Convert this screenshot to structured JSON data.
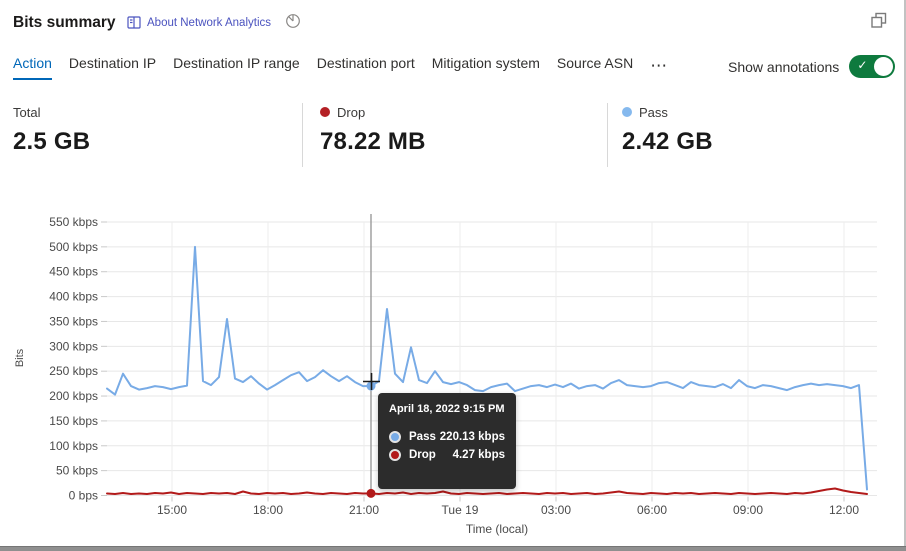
{
  "header": {
    "title": "Bits summary",
    "about_link": "About Network Analytics"
  },
  "tabs": {
    "items": [
      {
        "label": "Action",
        "active": true
      },
      {
        "label": "Destination IP",
        "active": false
      },
      {
        "label": "Destination IP range",
        "active": false
      },
      {
        "label": "Destination port",
        "active": false
      },
      {
        "label": "Mitigation system",
        "active": false
      },
      {
        "label": "Source ASN",
        "active": false
      }
    ],
    "more_label": "⋯"
  },
  "annotations_toggle": {
    "label": "Show annotations",
    "state": "on",
    "check_glyph": "✓"
  },
  "stats": [
    {
      "label": "Total",
      "value": "2.5 GB"
    },
    {
      "label": "Drop",
      "value": "78.22 MB",
      "dot": "drop"
    },
    {
      "label": "Pass",
      "value": "2.42 GB",
      "dot": "pass"
    }
  ],
  "colors": {
    "pass": "#85b9ee",
    "drop": "#b42025",
    "pass_line": "#78abe6",
    "drop_line": "#b21a1a",
    "tab_active": "#0067b8",
    "toggle_on": "#0e7a3e",
    "link": "#4b53bf",
    "tooltip_bg": "#2c2c2c"
  },
  "tooltip": {
    "title": "April 18, 2022 9:15 PM",
    "rows": [
      {
        "label": "Pass",
        "value": "220.13 kbps",
        "dot": "pass"
      },
      {
        "label": "Drop",
        "value": "4.27 kbps",
        "dot": "drop"
      }
    ]
  },
  "chart_data": {
    "type": "line",
    "title": "Bits summary",
    "xlabel": "Time (local)",
    "ylabel": "Bits",
    "unit": "kbps",
    "ylim_kbps": [
      0,
      550
    ],
    "y_tick_step_kbps": 50,
    "y_tick_labels": [
      "0 bps",
      "50 kbps",
      "100 kbps",
      "150 kbps",
      "200 kbps",
      "250 kbps",
      "300 kbps",
      "350 kbps",
      "400 kbps",
      "450 kbps",
      "500 kbps",
      "550 kbps"
    ],
    "x_tick_labels": [
      "15:00",
      "18:00",
      "21:00",
      "Tue 19",
      "03:00",
      "06:00",
      "09:00",
      "12:00"
    ],
    "x_range_note": "Apr 18 ~13:00 to Apr 19 ~13:00, one point per 15 minutes",
    "grid": true,
    "legend_position": "none",
    "series": [
      {
        "name": "Pass",
        "unit": "kbps",
        "values": [
          215,
          203,
          245,
          220,
          213,
          216,
          220,
          218,
          214,
          218,
          221,
          500,
          230,
          222,
          238,
          355,
          235,
          228,
          240,
          225,
          213,
          222,
          232,
          242,
          248,
          230,
          238,
          252,
          240,
          230,
          240,
          228,
          220,
          220.13,
          230,
          375,
          245,
          228,
          298,
          232,
          226,
          250,
          228,
          224,
          228,
          222,
          212,
          210,
          218,
          222,
          225,
          210,
          215,
          220,
          222,
          218,
          223,
          218,
          225,
          215,
          220,
          222,
          215,
          226,
          232,
          222,
          220,
          218,
          220,
          226,
          228,
          222,
          216,
          228,
          222,
          220,
          218,
          224,
          216,
          232,
          220,
          216,
          222,
          220,
          216,
          212,
          218,
          222,
          225,
          222,
          224,
          222,
          220,
          216,
          222,
          12
        ]
      },
      {
        "name": "Drop",
        "unit": "kbps",
        "values": [
          4,
          3,
          5,
          3,
          4,
          3,
          5,
          4,
          6,
          3,
          5,
          4,
          3,
          5,
          4,
          5,
          3,
          8,
          4,
          3,
          5,
          4,
          5,
          3,
          4,
          6,
          4,
          3,
          5,
          4,
          3,
          5,
          4,
          4.27,
          3,
          5,
          4,
          6,
          3,
          5,
          4,
          5,
          8,
          4,
          3,
          5,
          4,
          3,
          4,
          5,
          3,
          4,
          5,
          4,
          3,
          5,
          4,
          5,
          3,
          4,
          5,
          3,
          4,
          6,
          8,
          5,
          4,
          3,
          5,
          4,
          3,
          5,
          4,
          5,
          3,
          4,
          5,
          4,
          3,
          5,
          4,
          3,
          4,
          5,
          4,
          3,
          5,
          4,
          6,
          9,
          12,
          14,
          10,
          7,
          5,
          3
        ]
      }
    ],
    "hover": {
      "index": 33,
      "time": "April 18, 2022 9:15 PM",
      "pass_kbps": 220.13,
      "drop_kbps": 4.27
    }
  }
}
